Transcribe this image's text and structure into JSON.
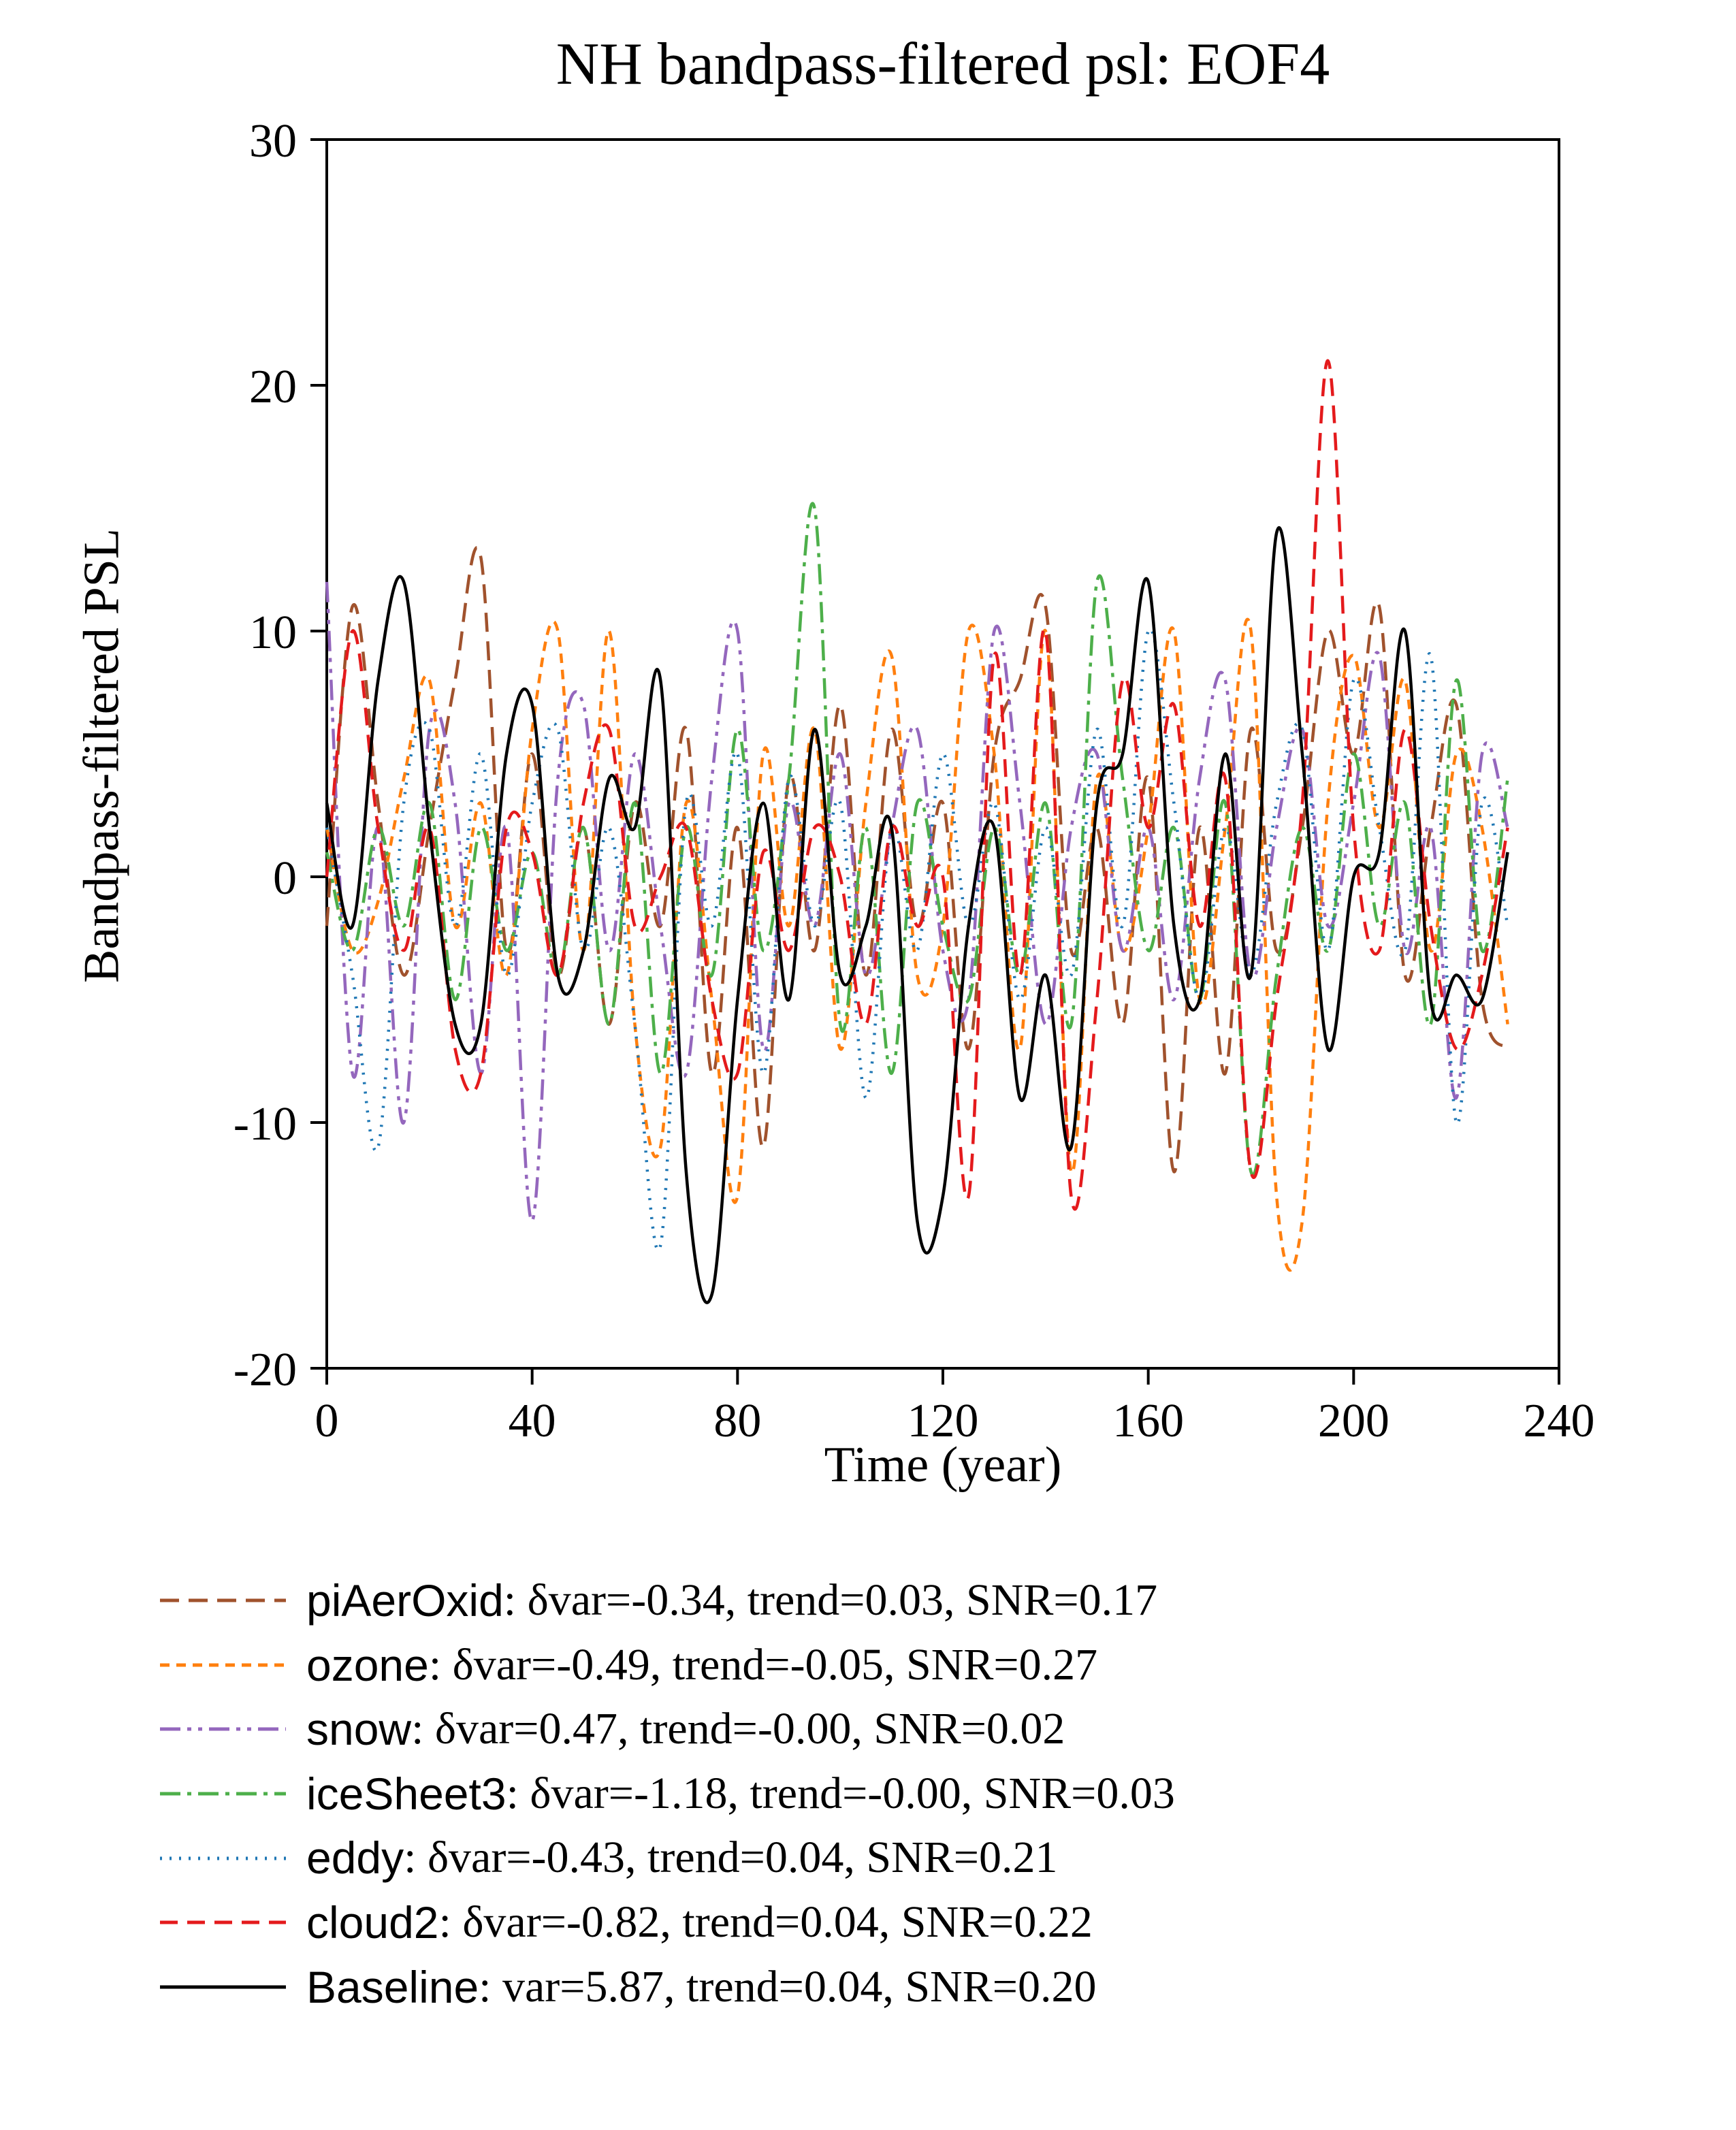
{
  "chart_data": {
    "type": "line",
    "title": "NH bandpass-filtered psl: EOF4",
    "xlabel": "Time (year)",
    "ylabel": "Bandpass-filtered PSL",
    "xlim": [
      0,
      240
    ],
    "ylim": [
      -20,
      30
    ],
    "xticks": [
      0,
      40,
      80,
      120,
      160,
      200,
      240
    ],
    "yticks": [
      -20,
      -10,
      0,
      10,
      20,
      30
    ],
    "grid": false,
    "legend_position": "below",
    "x_start": 0,
    "x_step": 5,
    "series": [
      {
        "name": "piAerOxid",
        "color": "#a0522d",
        "dash": "28 14",
        "stats": ": δvar=-0.34, trend=0.03, SNR=0.17",
        "values": [
          -2,
          11,
          3,
          -4,
          2,
          8,
          13,
          -3,
          5,
          -4,
          2,
          -6,
          3,
          -2,
          6,
          -8,
          2,
          -11,
          4,
          -3,
          7,
          -4,
          6,
          -2,
          3,
          -7,
          5,
          8,
          11,
          -3,
          2,
          -6,
          4,
          -12,
          2,
          -8,
          6,
          -3,
          2,
          10,
          5,
          11,
          -4,
          2,
          7,
          -5,
          -7
        ]
      },
      {
        "name": "ozone",
        "color": "#ff7f0e",
        "dash": "14 10",
        "stats": ": δvar=-0.49, trend=-0.05, SNR=0.27",
        "values": [
          2,
          -3,
          -1,
          4,
          8,
          -2,
          3,
          -4,
          6,
          10,
          -3,
          10,
          -6,
          -11,
          3,
          -5,
          -13,
          5,
          -2,
          6,
          -7,
          3,
          9,
          -4,
          -2,
          10,
          5,
          -7,
          10,
          -12,
          4,
          -3,
          2,
          10,
          -5,
          2,
          10,
          -13,
          -14,
          3,
          9,
          2,
          8,
          -3,
          5,
          2,
          -6
        ]
      },
      {
        "name": "snow",
        "color": "#9467bd",
        "dash": "30 10 6 10 6 10",
        "stats": ": δvar=0.47, trend=-0.00, SNR=0.02",
        "values": [
          12,
          -8,
          2,
          -10,
          6,
          3,
          -8,
          2,
          -14,
          4,
          7,
          -3,
          5,
          -2,
          -8,
          4,
          10,
          -7,
          3,
          -2,
          5,
          -4,
          2,
          6,
          -3,
          -5,
          10,
          3,
          -6,
          2,
          5,
          -3,
          2,
          -5,
          4,
          8,
          -4,
          2,
          6,
          -2,
          3,
          9,
          -3,
          2,
          -9,
          5,
          2
        ]
      },
      {
        "name": "iceSheet3",
        "color": "#4daf4a",
        "dash": "30 10 6 10",
        "stats": ": δvar=-1.18, trend=-0.00, SNR=0.03",
        "values": [
          1,
          -3,
          2,
          -2,
          3,
          -5,
          2,
          -3,
          1,
          -4,
          2,
          -6,
          3,
          -8,
          2,
          -4,
          6,
          -3,
          4,
          15,
          -6,
          2,
          -8,
          3,
          -2,
          -5,
          2,
          -4,
          3,
          -6,
          12,
          4,
          -3,
          2,
          -5,
          3,
          -12,
          -4,
          2,
          -3,
          5,
          -2,
          3,
          -6,
          8,
          -3,
          4
        ]
      },
      {
        "name": "eddy",
        "color": "#1f77b4",
        "dash": "3 11",
        "stats": ": δvar=-0.43, trend=0.04, SNR=0.21",
        "values": [
          2,
          -4,
          -11,
          3,
          6,
          -2,
          5,
          -4,
          3,
          6,
          -3,
          2,
          -6,
          -15,
          3,
          -2,
          5,
          -8,
          4,
          -2,
          3,
          -9,
          2,
          -3,
          5,
          -2,
          3,
          -5,
          2,
          -4,
          6,
          -2,
          10,
          3,
          -5,
          2,
          -4,
          3,
          6,
          -3,
          8,
          2,
          -3,
          9,
          -10,
          3,
          -2
        ]
      },
      {
        "name": "cloud2",
        "color": "#e41a1c",
        "dash": "26 14",
        "stats": ": δvar=-0.82, trend=0.04, SNR=0.22",
        "values": [
          0,
          10,
          2,
          -3,
          2,
          -7,
          -8,
          2,
          1,
          -4,
          3,
          6,
          -2,
          0,
          2,
          -5,
          -8,
          1,
          -3,
          2,
          0,
          -6,
          2,
          -2,
          0,
          -13,
          9,
          -4,
          10,
          -13,
          -5,
          8,
          2,
          7,
          -2,
          4,
          -12,
          -5,
          3,
          21,
          2,
          -3,
          6,
          -2,
          -7,
          -4,
          2
        ]
      },
      {
        "name": "Baseline",
        "color": "#000000",
        "dash": "",
        "stats": ": var=5.87, trend=0.04, SNR=0.20",
        "values": [
          3,
          -2,
          8,
          12,
          2,
          -6,
          -6,
          5,
          7,
          -4,
          -3,
          4,
          2,
          8,
          -12,
          -17,
          -5,
          3,
          -5,
          6,
          -4,
          -2,
          2,
          -14,
          -13,
          -2,
          2,
          -9,
          -4,
          -11,
          3,
          5,
          12,
          -2,
          -5,
          5,
          -4,
          14,
          5,
          -7,
          0,
          1,
          10,
          -5,
          -4,
          -5,
          1
        ]
      }
    ]
  }
}
